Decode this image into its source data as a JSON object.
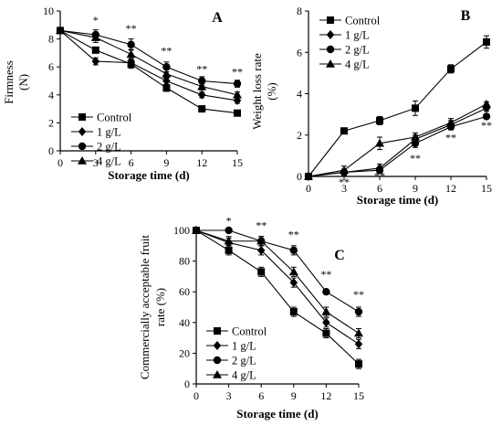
{
  "chart_data": [
    {
      "id": "A",
      "type": "line",
      "panel_label": "A",
      "xlabel": "Storage time (d)",
      "ylabel": "Firmness (N)",
      "x": [
        0,
        3,
        6,
        9,
        12,
        15
      ],
      "xlim": [
        0,
        15
      ],
      "ylim": [
        0,
        10
      ],
      "xticks": [
        "0",
        "3",
        "6",
        "9",
        "12",
        "15"
      ],
      "yticks": [
        "0",
        "2",
        "4",
        "6",
        "8",
        "10"
      ],
      "grid": false,
      "legend": "lower-left",
      "series": [
        {
          "name": "Control",
          "marker": "square",
          "values": [
            8.6,
            7.2,
            6.2,
            4.5,
            3.0,
            2.7
          ],
          "errors": [
            0.15,
            0.15,
            0.3,
            0.25,
            0.15,
            0.1
          ]
        },
        {
          "name": "1 g/L",
          "marker": "diamond",
          "values": [
            8.6,
            6.4,
            6.3,
            5.0,
            4.0,
            3.6
          ],
          "errors": [
            0.15,
            0.25,
            0.3,
            0.25,
            0.2,
            0.2
          ]
        },
        {
          "name": "2 g/L",
          "marker": "circle",
          "values": [
            8.6,
            8.3,
            7.6,
            6.0,
            5.0,
            4.8
          ],
          "errors": [
            0.15,
            0.35,
            0.4,
            0.35,
            0.3,
            0.25
          ]
        },
        {
          "name": "4 g/L",
          "marker": "triangle",
          "values": [
            8.6,
            8.1,
            6.9,
            5.5,
            4.6,
            4.0
          ],
          "errors": [
            0.15,
            0.35,
            0.35,
            0.3,
            0.25,
            0.2
          ]
        }
      ],
      "annotations": [
        {
          "x": 3,
          "y": 9.1,
          "text": "*"
        },
        {
          "x": 6,
          "y": 8.5,
          "text": "**"
        },
        {
          "x": 9,
          "y": 6.9,
          "text": "**"
        },
        {
          "x": 12,
          "y": 5.6,
          "text": "**"
        },
        {
          "x": 15,
          "y": 5.4,
          "text": "**"
        }
      ]
    },
    {
      "id": "B",
      "type": "line",
      "panel_label": "B",
      "xlabel": "Storage time (d)",
      "ylabel": "Weight loss rate (%)",
      "x": [
        0,
        3,
        6,
        9,
        12,
        15
      ],
      "xlim": [
        0,
        15
      ],
      "ylim": [
        0,
        8
      ],
      "xticks": [
        "0",
        "3",
        "6",
        "9",
        "12",
        "15"
      ],
      "yticks": [
        "0",
        "2",
        "4",
        "6",
        "8"
      ],
      "grid": false,
      "legend": "top-left",
      "series": [
        {
          "name": "Control",
          "marker": "square",
          "values": [
            0,
            2.2,
            2.7,
            3.3,
            5.2,
            6.5
          ],
          "errors": [
            0.05,
            0.1,
            0.2,
            0.35,
            0.2,
            0.3
          ]
        },
        {
          "name": "1 g/L",
          "marker": "diamond",
          "values": [
            0,
            0.2,
            0.4,
            1.8,
            2.5,
            3.3
          ],
          "errors": [
            0.05,
            0.15,
            0.2,
            0.2,
            0.2,
            0.15
          ]
        },
        {
          "name": "2 g/L",
          "marker": "circle",
          "values": [
            0,
            0.2,
            0.3,
            1.6,
            2.4,
            2.9
          ],
          "errors": [
            0.05,
            0.15,
            0.15,
            0.2,
            0.15,
            0.1
          ]
        },
        {
          "name": "4 g/L",
          "marker": "triangle",
          "values": [
            0,
            0.3,
            1.6,
            1.9,
            2.6,
            3.5
          ],
          "errors": [
            0.05,
            0.2,
            0.3,
            0.2,
            0.2,
            0.1
          ]
        }
      ],
      "annotations": [
        {
          "x": 3,
          "y": -0.45,
          "text": "**"
        },
        {
          "x": 6,
          "y": -0.15,
          "text": "**"
        },
        {
          "x": 9,
          "y": 0.7,
          "text": "**"
        },
        {
          "x": 12,
          "y": 1.7,
          "text": "**"
        },
        {
          "x": 15,
          "y": 2.3,
          "text": "**"
        }
      ]
    },
    {
      "id": "C",
      "type": "line",
      "panel_label": "C",
      "xlabel": "Storage time (d)",
      "ylabel": "Commercially acceptable fruit rate (%)",
      "x": [
        0,
        3,
        6,
        9,
        12,
        15
      ],
      "xlim": [
        0,
        15
      ],
      "ylim": [
        0,
        100
      ],
      "xticks": [
        "0",
        "3",
        "6",
        "9",
        "12",
        "15"
      ],
      "yticks": [
        "0",
        "20",
        "40",
        "60",
        "80",
        "100"
      ],
      "grid": false,
      "legend": "lower-left",
      "series": [
        {
          "name": "Control",
          "marker": "square",
          "values": [
            100,
            87,
            73,
            47,
            33,
            13
          ],
          "errors": [
            0,
            3,
            3,
            3,
            3,
            3
          ]
        },
        {
          "name": "1 g/L",
          "marker": "diamond",
          "values": [
            100,
            92,
            87,
            66,
            40,
            26
          ],
          "errors": [
            0,
            3,
            3,
            3,
            3,
            3
          ]
        },
        {
          "name": "2 g/L",
          "marker": "circle",
          "values": [
            100,
            100,
            93,
            87,
            60,
            47
          ],
          "errors": [
            0,
            1,
            3,
            3,
            1,
            3
          ]
        },
        {
          "name": "4 g/L",
          "marker": "triangle",
          "values": [
            100,
            93,
            93,
            73,
            47,
            33
          ],
          "errors": [
            0,
            3,
            3,
            3,
            3,
            3
          ]
        }
      ],
      "annotations": [
        {
          "x": 3,
          "y": 104,
          "text": "*"
        },
        {
          "x": 6,
          "y": 101,
          "text": "**"
        },
        {
          "x": 9,
          "y": 95,
          "text": "**"
        },
        {
          "x": 12,
          "y": 69,
          "text": "**"
        },
        {
          "x": 15,
          "y": 56,
          "text": "**"
        }
      ]
    }
  ]
}
